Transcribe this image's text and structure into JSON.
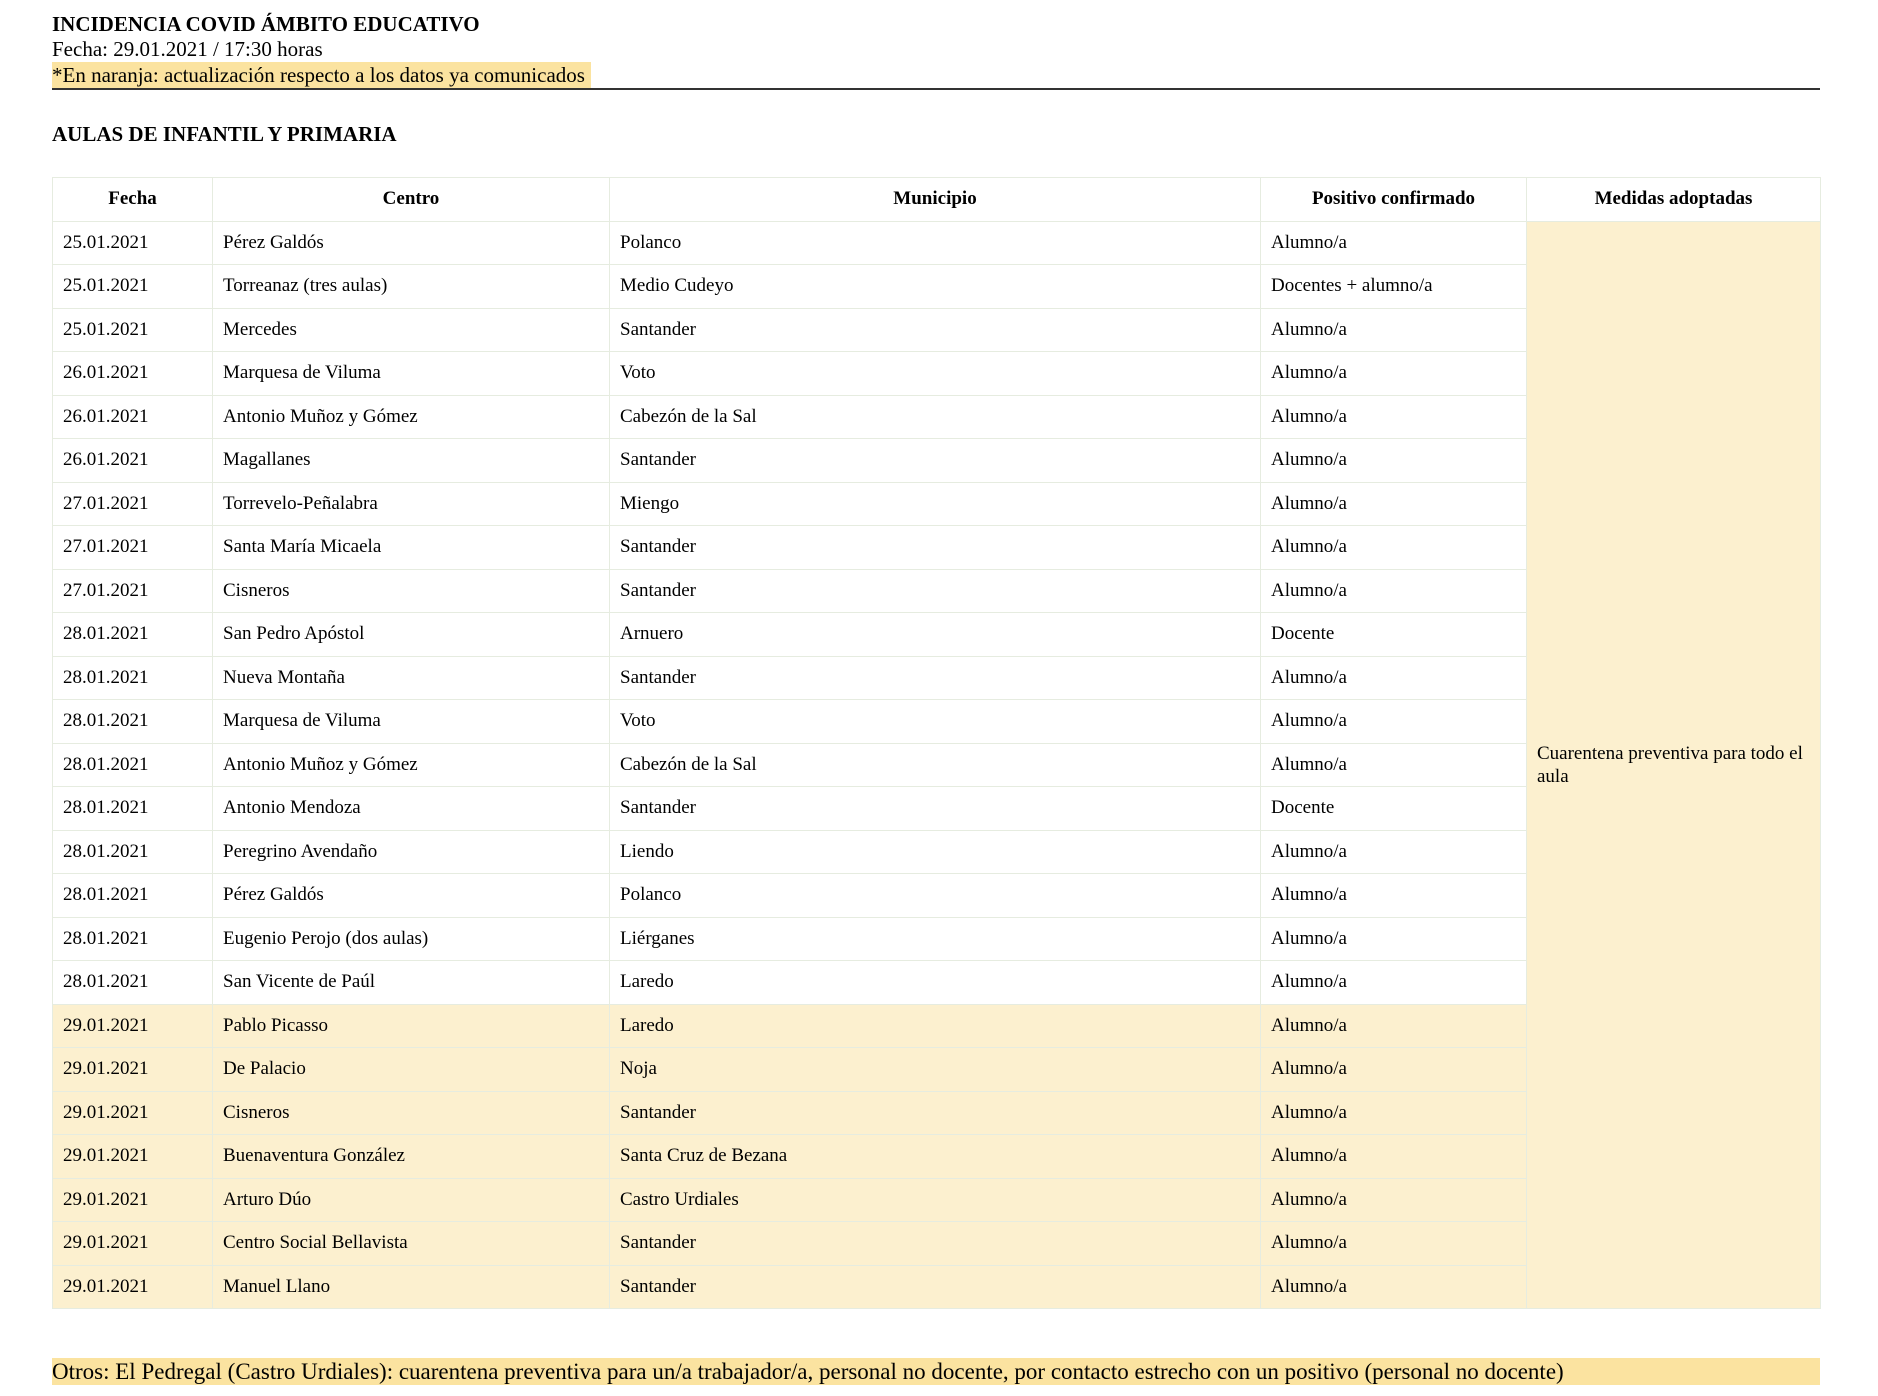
{
  "header": {
    "title": "INCIDENCIA COVID ÁMBITO EDUCATIVO",
    "date": "Fecha: 29.01.2021 / 17:30 horas",
    "note": "*En naranja: actualización respecto a los datos ya comunicados"
  },
  "colors": {
    "highlight": "#fbe3a0",
    "updated_row": "#fcf0cf"
  },
  "section_title": "AULAS DE INFANTIL Y PRIMARIA",
  "table": {
    "columns": [
      "Fecha",
      "Centro",
      "Municipio",
      "Positivo confirmado",
      "Medidas adoptadas"
    ],
    "medidas": "Cuarentena preventiva para todo el aula",
    "rows": [
      {
        "fecha": "25.01.2021",
        "centro": "Pérez Galdós",
        "municipio": "Polanco",
        "positivo": "Alumno/a",
        "updated": false
      },
      {
        "fecha": "25.01.2021",
        "centro": "Torreanaz (tres aulas)",
        "municipio": "Medio Cudeyo",
        "positivo": "Docentes + alumno/a",
        "updated": false
      },
      {
        "fecha": "25.01.2021",
        "centro": "Mercedes",
        "municipio": "Santander",
        "positivo": "Alumno/a",
        "updated": false
      },
      {
        "fecha": "26.01.2021",
        "centro": "Marquesa de Viluma",
        "municipio": "Voto",
        "positivo": "Alumno/a",
        "updated": false
      },
      {
        "fecha": "26.01.2021",
        "centro": "Antonio Muñoz y Gómez",
        "municipio": "Cabezón de la Sal",
        "positivo": "Alumno/a",
        "updated": false
      },
      {
        "fecha": "26.01.2021",
        "centro": "Magallanes",
        "municipio": "Santander",
        "positivo": "Alumno/a",
        "updated": false
      },
      {
        "fecha": "27.01.2021",
        "centro": "Torrevelo-Peñalabra",
        "municipio": "Miengo",
        "positivo": "Alumno/a",
        "updated": false
      },
      {
        "fecha": "27.01.2021",
        "centro": "Santa María Micaela",
        "municipio": "Santander",
        "positivo": "Alumno/a",
        "updated": false
      },
      {
        "fecha": "27.01.2021",
        "centro": "Cisneros",
        "municipio": "Santander",
        "positivo": "Alumno/a",
        "updated": false
      },
      {
        "fecha": "28.01.2021",
        "centro": "San Pedro Apóstol",
        "municipio": "Arnuero",
        "positivo": "Docente",
        "updated": false
      },
      {
        "fecha": "28.01.2021",
        "centro": "Nueva Montaña",
        "municipio": "Santander",
        "positivo": "Alumno/a",
        "updated": false
      },
      {
        "fecha": "28.01.2021",
        "centro": "Marquesa de Viluma",
        "municipio": "Voto",
        "positivo": "Alumno/a",
        "updated": false
      },
      {
        "fecha": "28.01.2021",
        "centro": "Antonio Muñoz y Gómez",
        "municipio": "Cabezón de la Sal",
        "positivo": "Alumno/a",
        "updated": false
      },
      {
        "fecha": "28.01.2021",
        "centro": "Antonio Mendoza",
        "municipio": "Santander",
        "positivo": "Docente",
        "updated": false
      },
      {
        "fecha": "28.01.2021",
        "centro": "Peregrino Avendaño",
        "municipio": "Liendo",
        "positivo": "Alumno/a",
        "updated": false
      },
      {
        "fecha": "28.01.2021",
        "centro": "Pérez Galdós",
        "municipio": "Polanco",
        "positivo": "Alumno/a",
        "updated": false
      },
      {
        "fecha": "28.01.2021",
        "centro": "Eugenio Perojo (dos aulas)",
        "municipio": "Liérganes",
        "positivo": "Alumno/a",
        "updated": false
      },
      {
        "fecha": "28.01.2021",
        "centro": "San Vicente de Paúl",
        "municipio": "Laredo",
        "positivo": "Alumno/a",
        "updated": false
      },
      {
        "fecha": "29.01.2021",
        "centro": "Pablo Picasso",
        "municipio": "Laredo",
        "positivo": "Alumno/a",
        "updated": true
      },
      {
        "fecha": "29.01.2021",
        "centro": "De Palacio",
        "municipio": "Noja",
        "positivo": "Alumno/a",
        "updated": true
      },
      {
        "fecha": "29.01.2021",
        "centro": "Cisneros",
        "municipio": "Santander",
        "positivo": "Alumno/a",
        "updated": true
      },
      {
        "fecha": "29.01.2021",
        "centro": "Buenaventura González",
        "municipio": "Santa Cruz de Bezana",
        "positivo": "Alumno/a",
        "updated": true
      },
      {
        "fecha": "29.01.2021",
        "centro": "Arturo Dúo",
        "municipio": "Castro Urdiales",
        "positivo": "Alumno/a",
        "updated": true
      },
      {
        "fecha": "29.01.2021",
        "centro": "Centro Social Bellavista",
        "municipio": "Santander",
        "positivo": "Alumno/a",
        "updated": true
      },
      {
        "fecha": "29.01.2021",
        "centro": "Manuel Llano",
        "municipio": "Santander",
        "positivo": "Alumno/a",
        "updated": true
      }
    ]
  },
  "otros": "Otros: El Pedregal (Castro Urdiales): cuarentena preventiva para un/a trabajador/a, personal no docente, por contacto estrecho con un positivo (personal no docente)"
}
